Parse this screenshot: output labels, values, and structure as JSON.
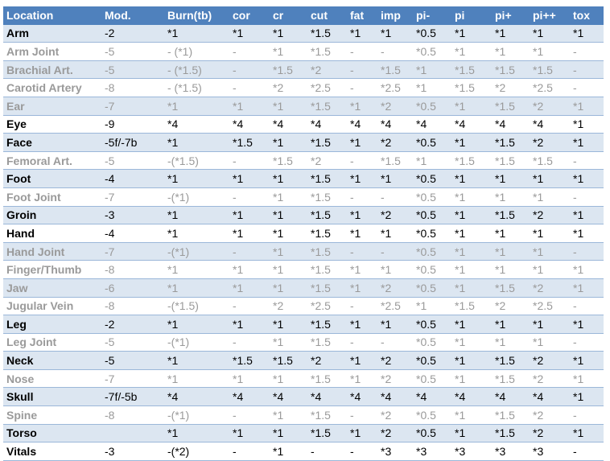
{
  "columns": [
    "Location",
    "Mod.",
    "Burn(tb)",
    "cor",
    "cr",
    "cut",
    "fat",
    "imp",
    "pi-",
    "pi",
    "pi+",
    "pi++",
    "tox"
  ],
  "rows": [
    {
      "kind": "major",
      "cells": [
        "Arm",
        "-2",
        "*1",
        "*1",
        "*1",
        "*1.5",
        "*1",
        "*1",
        "*0.5",
        "*1",
        "*1",
        "*1",
        "*1"
      ]
    },
    {
      "kind": "minor",
      "cells": [
        "Arm Joint",
        "-5",
        "- (*1)",
        "-",
        "*1",
        "*1.5",
        "-",
        "-",
        "*0.5",
        "*1",
        "*1",
        "*1",
        "-"
      ]
    },
    {
      "kind": "minor",
      "cells": [
        "Brachial Art.",
        "-5",
        "- (*1.5)",
        "-",
        "*1.5",
        "*2",
        "-",
        "*1.5",
        "*1",
        "*1.5",
        "*1.5",
        "*1.5",
        "-"
      ]
    },
    {
      "kind": "minor",
      "cells": [
        "Carotid Artery",
        "-8",
        "- (*1.5)",
        "-",
        "*2",
        "*2.5",
        "-",
        "*2.5",
        "*1",
        "*1.5",
        "*2",
        "*2.5",
        "-"
      ]
    },
    {
      "kind": "minor",
      "cells": [
        "Ear",
        "-7",
        "*1",
        "*1",
        "*1",
        "*1.5",
        "*1",
        "*2",
        "*0.5",
        "*1",
        "*1.5",
        "*2",
        "*1"
      ]
    },
    {
      "kind": "major",
      "cells": [
        "Eye",
        "-9",
        "*4",
        "*4",
        "*4",
        "*4",
        "*4",
        "*4",
        "*4",
        "*4",
        "*4",
        "*4",
        "*1"
      ]
    },
    {
      "kind": "major",
      "cells": [
        "Face",
        "-5f/-7b",
        "*1",
        "*1.5",
        "*1",
        "*1.5",
        "*1",
        "*2",
        "*0.5",
        "*1",
        "*1.5",
        "*2",
        "*1"
      ]
    },
    {
      "kind": "minor",
      "cells": [
        "Femoral Art.",
        "-5",
        "-(*1.5)",
        "-",
        "*1.5",
        "*2",
        "-",
        "*1.5",
        "*1",
        "*1.5",
        "*1.5",
        "*1.5",
        "-"
      ]
    },
    {
      "kind": "major",
      "cells": [
        "Foot",
        "-4",
        "*1",
        "*1",
        "*1",
        "*1.5",
        "*1",
        "*1",
        "*0.5",
        "*1",
        "*1",
        "*1",
        "*1"
      ]
    },
    {
      "kind": "minor",
      "cells": [
        "Foot Joint",
        "-7",
        "-(*1)",
        "-",
        "*1",
        "*1.5",
        "-",
        "-",
        "*0.5",
        "*1",
        "*1",
        "*1",
        "-"
      ]
    },
    {
      "kind": "major",
      "cells": [
        "Groin",
        "-3",
        "*1",
        "*1",
        "*1",
        "*1.5",
        "*1",
        "*2",
        "*0.5",
        "*1",
        "*1.5",
        "*2",
        "*1"
      ]
    },
    {
      "kind": "major",
      "cells": [
        "Hand",
        "-4",
        "*1",
        "*1",
        "*1",
        "*1.5",
        "*1",
        "*1",
        "*0.5",
        "*1",
        "*1",
        "*1",
        "*1"
      ]
    },
    {
      "kind": "minor",
      "cells": [
        "Hand Joint",
        "-7",
        "-(*1)",
        "-",
        "*1",
        "*1.5",
        "-",
        "-",
        "*0.5",
        "*1",
        "*1",
        "*1",
        "-"
      ]
    },
    {
      "kind": "minor",
      "cells": [
        "Finger/Thumb",
        "-8",
        "*1",
        "*1",
        "*1",
        "*1.5",
        "*1",
        "*1",
        "*0.5",
        "*1",
        "*1",
        "*1",
        "*1"
      ]
    },
    {
      "kind": "minor",
      "cells": [
        "Jaw",
        "-6",
        "*1",
        "*1",
        "*1",
        "*1.5",
        "*1",
        "*2",
        "*0.5",
        "*1",
        "*1.5",
        "*2",
        "*1"
      ]
    },
    {
      "kind": "minor",
      "cells": [
        "Jugular Vein",
        "-8",
        "-(*1.5)",
        "-",
        "*2",
        "*2.5",
        "-",
        "*2.5",
        "*1",
        "*1.5",
        "*2",
        "*2.5",
        "-"
      ]
    },
    {
      "kind": "major",
      "cells": [
        "Leg",
        "-2",
        "*1",
        "*1",
        "*1",
        "*1.5",
        "*1",
        "*1",
        "*0.5",
        "*1",
        "*1",
        "*1",
        "*1"
      ]
    },
    {
      "kind": "minor",
      "cells": [
        "Leg Joint",
        "-5",
        "-(*1)",
        "-",
        "*1",
        "*1.5",
        "-",
        "-",
        "*0.5",
        "*1",
        "*1",
        "*1",
        "-"
      ]
    },
    {
      "kind": "major",
      "cells": [
        "Neck",
        "-5",
        "*1",
        "*1.5",
        "*1.5",
        "*2",
        "*1",
        "*2",
        "*0.5",
        "*1",
        "*1.5",
        "*2",
        "*1"
      ]
    },
    {
      "kind": "minor",
      "cells": [
        "Nose",
        "-7",
        "*1",
        "*1",
        "*1",
        "*1.5",
        "*1",
        "*2",
        "*0.5",
        "*1",
        "*1.5",
        "*2",
        "*1"
      ]
    },
    {
      "kind": "major",
      "cells": [
        "Skull",
        "-7f/-5b",
        "*4",
        "*4",
        "*4",
        "*4",
        "*4",
        "*4",
        "*4",
        "*4",
        "*4",
        "*4",
        "*1"
      ]
    },
    {
      "kind": "minor",
      "cells": [
        "Spine",
        "-8",
        "-(*1)",
        "-",
        "*1",
        "*1.5",
        "-",
        "*2",
        "*0.5",
        "*1",
        "*1.5",
        "*2",
        "-"
      ]
    },
    {
      "kind": "major",
      "cells": [
        "Torso",
        "",
        "*1",
        "*1",
        "*1",
        "*1.5",
        "*1",
        "*2",
        "*0.5",
        "*1",
        "*1.5",
        "*2",
        "*1"
      ]
    },
    {
      "kind": "major",
      "cells": [
        "Vitals",
        "-3",
        "-(*2)",
        "-",
        "*1",
        "-",
        "-",
        "*3",
        "*3",
        "*3",
        "*3",
        "*3",
        "-"
      ]
    }
  ],
  "colors": {
    "header_bg": "#4f81bd",
    "header_text": "#ffffff",
    "band_bg": "#dce6f1",
    "major_text": "#000000",
    "minor_text": "#9a9a9a",
    "rule": "#9bb7d9"
  }
}
